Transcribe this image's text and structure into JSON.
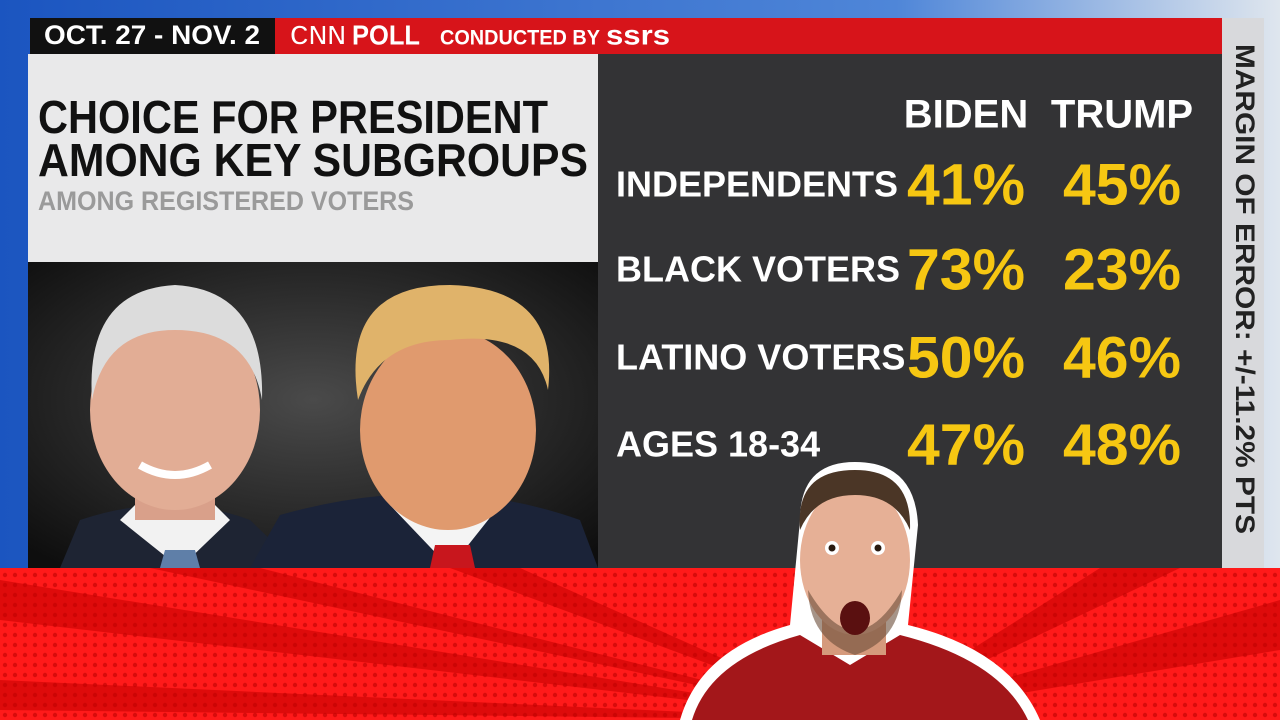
{
  "header": {
    "dates": "OCT. 27 - NOV. 2",
    "network": "CNN",
    "label": "POLL",
    "conducted_by": "CONDUCTED BY",
    "pollster": "ssrs"
  },
  "title_lines": [
    "CHOICE FOR PRESIDENT",
    "AMONG KEY SUBGROUPS"
  ],
  "subtitle": "AMONG REGISTERED VOTERS",
  "table": {
    "columns": [
      "BIDEN",
      "TRUMP"
    ],
    "rows": [
      {
        "label": "INDEPENDENTS",
        "values": [
          "41%",
          "45%"
        ]
      },
      {
        "label": "BLACK VOTERS",
        "values": [
          "73%",
          "23%"
        ]
      },
      {
        "label": "LATINO VOTERS",
        "values": [
          "50%",
          "46%"
        ]
      },
      {
        "label": "AGES 18-34",
        "values": [
          "47%",
          "48%"
        ]
      }
    ]
  },
  "margin_of_error": "MARGIN OF ERROR: +/-11.2% PTS"
}
